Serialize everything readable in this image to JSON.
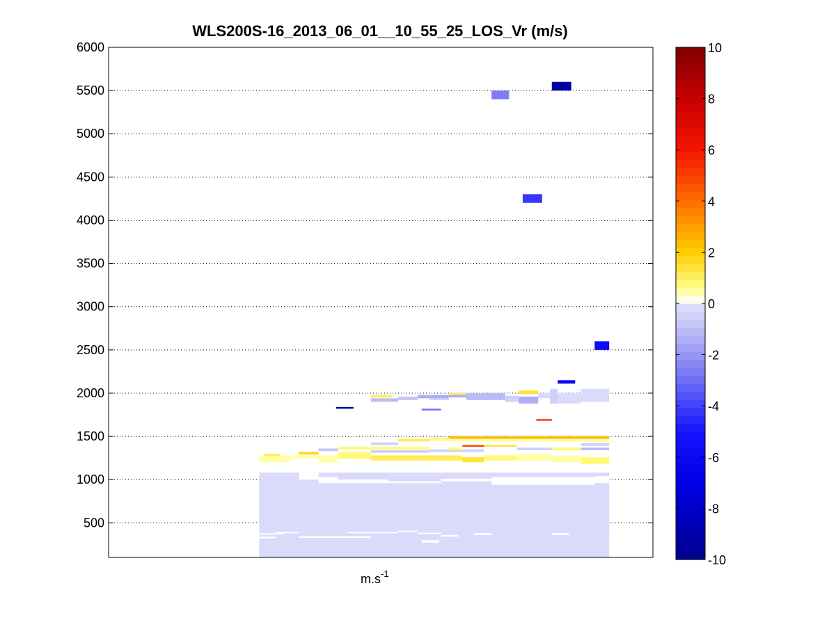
{
  "chart_data": {
    "type": "heatmap",
    "title": "WLS200S-16_2013_06_01__10_55_25_LOS_Vr (m/s)",
    "xlabel": "m.s",
    "xlabel_superscript": "-1",
    "ylabel": "",
    "ylim": [
      100,
      6000
    ],
    "xlim": [
      0,
      28
    ],
    "y_ticks": [
      500,
      1000,
      1500,
      2000,
      2500,
      3000,
      3500,
      4000,
      4500,
      5000,
      5500,
      6000
    ],
    "grid": "horizontal dotted",
    "colorbar": {
      "range": [
        -10,
        10
      ],
      "ticks": [
        -10,
        -8,
        -6,
        -4,
        -2,
        0,
        2,
        4,
        6,
        8,
        10
      ],
      "levels": 64,
      "colormap": "dark blue - blue - pale lavender - white - yellow - orange - red - dark red",
      "placement": "right"
    },
    "cells": [
      {
        "x0": 7.75,
        "x1": 25.75,
        "y0": 100,
        "y1": 1080,
        "v": -0.3
      },
      {
        "x0": 7.75,
        "x1": 9.3,
        "y0": 1200,
        "y1": 1280,
        "v": 0.6
      },
      {
        "x0": 9.3,
        "x1": 10.8,
        "y0": 1240,
        "y1": 1280,
        "v": 0.6
      },
      {
        "x0": 10.8,
        "x1": 11.8,
        "y0": 1200,
        "y1": 1280,
        "v": 0.6
      },
      {
        "x0": 11.8,
        "x1": 13.5,
        "y0": 1240,
        "y1": 1320,
        "v": 0.9
      },
      {
        "x0": 13.5,
        "x1": 16.5,
        "y0": 1220,
        "y1": 1280,
        "v": 1.2
      },
      {
        "x0": 16.5,
        "x1": 18.2,
        "y0": 1220,
        "y1": 1280,
        "v": 1.2
      },
      {
        "x0": 18.2,
        "x1": 19.3,
        "y0": 1200,
        "y1": 1260,
        "v": 1.5
      },
      {
        "x0": 19.3,
        "x1": 21.0,
        "y0": 1220,
        "y1": 1280,
        "v": 0.8
      },
      {
        "x0": 21.0,
        "x1": 22.8,
        "y0": 1220,
        "y1": 1300,
        "v": 0.6
      },
      {
        "x0": 22.8,
        "x1": 24.3,
        "y0": 1200,
        "y1": 1280,
        "v": 0.6
      },
      {
        "x0": 24.3,
        "x1": 25.75,
        "y0": 1180,
        "y1": 1260,
        "v": 0.7
      },
      {
        "x0": 9.8,
        "x1": 10.8,
        "y0": 1290,
        "y1": 1320,
        "v": 1.8
      },
      {
        "x0": 10.8,
        "x1": 11.8,
        "y0": 1330,
        "y1": 1360,
        "v": -0.9
      },
      {
        "x0": 11.8,
        "x1": 16.5,
        "y0": 1350,
        "y1": 1380,
        "v": 0.7
      },
      {
        "x0": 13.5,
        "x1": 16.5,
        "y0": 1310,
        "y1": 1340,
        "v": -0.4
      },
      {
        "x0": 16.5,
        "x1": 19.3,
        "y0": 1320,
        "y1": 1350,
        "v": -0.4
      },
      {
        "x0": 17.5,
        "x1": 18.2,
        "y0": 1340,
        "y1": 1370,
        "v": 0.9
      },
      {
        "x0": 18.2,
        "x1": 19.3,
        "y0": 1380,
        "y1": 1400,
        "v": 4.8
      },
      {
        "x0": 19.3,
        "x1": 21.0,
        "y0": 1380,
        "y1": 1400,
        "v": 1.5
      },
      {
        "x0": 21.0,
        "x1": 22.8,
        "y0": 1340,
        "y1": 1370,
        "v": -0.6
      },
      {
        "x0": 22.8,
        "x1": 24.3,
        "y0": 1340,
        "y1": 1370,
        "v": 0.7
      },
      {
        "x0": 24.3,
        "x1": 25.75,
        "y0": 1340,
        "y1": 1370,
        "v": -1.2
      },
      {
        "x0": 24.3,
        "x1": 25.75,
        "y0": 1390,
        "y1": 1420,
        "v": -0.6
      },
      {
        "x0": 13.5,
        "x1": 14.9,
        "y0": 1400,
        "y1": 1430,
        "v": -0.4
      },
      {
        "x0": 14.9,
        "x1": 16.5,
        "y0": 1440,
        "y1": 1470,
        "v": 1.0
      },
      {
        "x0": 16.5,
        "x1": 17.5,
        "y0": 1450,
        "y1": 1480,
        "v": 0.8
      },
      {
        "x0": 17.5,
        "x1": 25.75,
        "y0": 1470,
        "y1": 1500,
        "v": 2.2
      },
      {
        "x0": 17.5,
        "x1": 25.75,
        "y0": 1440,
        "y1": 1470,
        "v": 0.6
      },
      {
        "x0": 22.0,
        "x1": 22.8,
        "y0": 1680,
        "y1": 1700,
        "v": 5.0
      },
      {
        "x0": 8.0,
        "x1": 8.8,
        "y0": 1270,
        "y1": 1300,
        "v": 1.0
      },
      {
        "x0": 11.7,
        "x1": 12.6,
        "y0": 1820,
        "y1": 1840,
        "v": -9.2
      },
      {
        "x0": 13.5,
        "x1": 14.6,
        "y0": 1950,
        "y1": 1980,
        "v": 1.2
      },
      {
        "x0": 13.5,
        "x1": 14.9,
        "y0": 1900,
        "y1": 1940,
        "v": -1.2
      },
      {
        "x0": 14.9,
        "x1": 15.9,
        "y0": 1920,
        "y1": 1960,
        "v": -0.8
      },
      {
        "x0": 15.9,
        "x1": 17.5,
        "y0": 1940,
        "y1": 1980,
        "v": -1.3
      },
      {
        "x0": 16.5,
        "x1": 17.5,
        "y0": 1920,
        "y1": 1940,
        "v": -0.4
      },
      {
        "x0": 17.5,
        "x1": 18.4,
        "y0": 1950,
        "y1": 2000,
        "v": -1.3
      },
      {
        "x0": 17.5,
        "x1": 18.4,
        "y0": 1980,
        "y1": 2000,
        "v": 1.2
      },
      {
        "x0": 18.4,
        "x1": 20.4,
        "y0": 1920,
        "y1": 2000,
        "v": -1.2
      },
      {
        "x0": 20.4,
        "x1": 21.1,
        "y0": 1900,
        "y1": 1970,
        "v": -0.5
      },
      {
        "x0": 21.1,
        "x1": 22.1,
        "y0": 1880,
        "y1": 1960,
        "v": -1.3
      },
      {
        "x0": 21.1,
        "x1": 22.1,
        "y0": 1990,
        "y1": 2030,
        "v": 1.5
      },
      {
        "x0": 22.1,
        "x1": 22.7,
        "y0": 1940,
        "y1": 2000,
        "v": -0.3
      },
      {
        "x0": 22.7,
        "x1": 23.1,
        "y0": 1880,
        "y1": 2050,
        "v": -0.4
      },
      {
        "x0": 23.1,
        "x1": 24.3,
        "y0": 1880,
        "y1": 2000,
        "v": -0.2
      },
      {
        "x0": 24.3,
        "x1": 25.75,
        "y0": 1900,
        "y1": 2050,
        "v": -0.3
      },
      {
        "x0": 16.1,
        "x1": 17.1,
        "y0": 1800,
        "y1": 1820,
        "v": -3.0
      },
      {
        "x0": 23.1,
        "x1": 24.0,
        "y0": 2110,
        "y1": 2150,
        "v": -6.5
      },
      {
        "x0": 25.0,
        "x1": 25.75,
        "y0": 2500,
        "y1": 2600,
        "v": -5.8
      },
      {
        "x0": 21.3,
        "x1": 22.3,
        "y0": 4200,
        "y1": 4300,
        "v": -4.3
      },
      {
        "x0": 19.7,
        "x1": 20.6,
        "y0": 5400,
        "y1": 5500,
        "v": -2.8
      },
      {
        "x0": 22.8,
        "x1": 23.8,
        "y0": 5500,
        "y1": 5600,
        "v": -9.2
      }
    ],
    "gaps": [
      {
        "x0": 7.75,
        "x1": 25.75,
        "y0": 405,
        "y1": 1080,
        "fill": "pale"
      },
      {
        "x0": 7.75,
        "x1": 9.0,
        "y0": 365,
        "y1": 380,
        "fill": "white"
      },
      {
        "x0": 7.75,
        "x1": 8.6,
        "y0": 320,
        "y1": 340,
        "fill": "white"
      },
      {
        "x0": 8.6,
        "x1": 9.8,
        "y0": 380,
        "y1": 395,
        "fill": "white"
      },
      {
        "x0": 9.8,
        "x1": 13.5,
        "y0": 325,
        "y1": 345,
        "fill": "white"
      },
      {
        "x0": 12.3,
        "x1": 14.9,
        "y0": 380,
        "y1": 395,
        "fill": "white"
      },
      {
        "x0": 14.9,
        "x1": 15.9,
        "y0": 395,
        "y1": 410,
        "fill": "white"
      },
      {
        "x0": 15.9,
        "x1": 17.1,
        "y0": 370,
        "y1": 385,
        "fill": "white"
      },
      {
        "x0": 16.1,
        "x1": 17.0,
        "y0": 270,
        "y1": 300,
        "fill": "white"
      },
      {
        "x0": 17.1,
        "x1": 18.0,
        "y0": 340,
        "y1": 360,
        "fill": "white"
      },
      {
        "x0": 18.8,
        "x1": 19.7,
        "y0": 360,
        "y1": 380,
        "fill": "white"
      },
      {
        "x0": 22.8,
        "x1": 23.7,
        "y0": 360,
        "y1": 380,
        "fill": "white"
      },
      {
        "x0": 9.8,
        "x1": 10.8,
        "y0": 1000,
        "y1": 1080,
        "fill": "white"
      },
      {
        "x0": 10.8,
        "x1": 11.8,
        "y0": 960,
        "y1": 1030,
        "fill": "white"
      },
      {
        "x0": 11.8,
        "x1": 14.4,
        "y0": 960,
        "y1": 1000,
        "fill": "white"
      },
      {
        "x0": 14.4,
        "x1": 17.1,
        "y0": 960,
        "y1": 980,
        "fill": "white"
      },
      {
        "x0": 17.1,
        "x1": 19.7,
        "y0": 980,
        "y1": 1010,
        "fill": "white"
      },
      {
        "x0": 19.7,
        "x1": 25.0,
        "y0": 940,
        "y1": 1030,
        "fill": "white"
      },
      {
        "x0": 25.0,
        "x1": 25.75,
        "y0": 960,
        "y1": 1040,
        "fill": "white"
      },
      {
        "x0": 11.8,
        "x1": 12.6,
        "y0": 1180,
        "y1": 1200,
        "fill": "white"
      },
      {
        "x0": 14.9,
        "x1": 15.9,
        "y0": 1180,
        "y1": 1200,
        "fill": "white"
      }
    ]
  }
}
